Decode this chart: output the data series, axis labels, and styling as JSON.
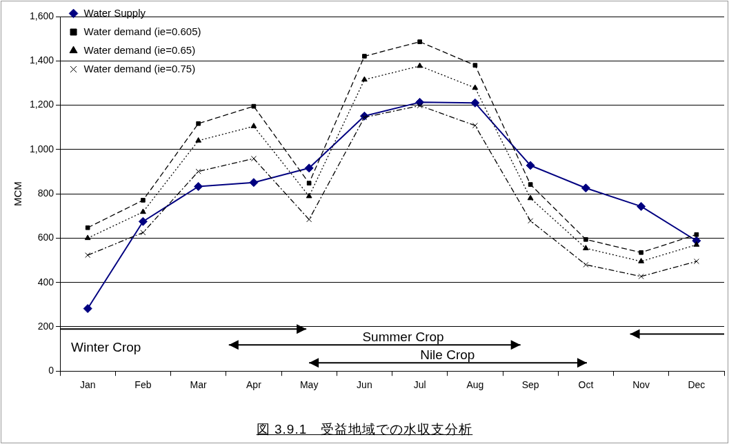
{
  "chart_data": {
    "type": "line",
    "title": "図 3.9.1　受益地域での水収支分析",
    "ylabel": "MCM",
    "categories": [
      "Jan",
      "Feb",
      "Mar",
      "Apr",
      "May",
      "Jun",
      "Jul",
      "Aug",
      "Sep",
      "Oct",
      "Nov",
      "Dec"
    ],
    "series": [
      {
        "name": "Water Supply",
        "color": "#000080",
        "marker": "diamond",
        "line_style": "solid",
        "values": [
          282,
          675,
          833,
          851,
          916,
          1151,
          1213,
          1210,
          928,
          826,
          743,
          588
        ]
      },
      {
        "name": "Water demand (ie=0.605)",
        "color": "#000000",
        "marker": "square",
        "line_style": "dashed",
        "values": [
          647,
          771,
          1117,
          1195,
          848,
          1421,
          1486,
          1380,
          842,
          594,
          535,
          616
        ]
      },
      {
        "name": "Water demand (ie=0.65)",
        "color": "#000000",
        "marker": "triangle",
        "line_style": "dotted",
        "values": [
          600,
          718,
          1040,
          1105,
          789,
          1315,
          1377,
          1278,
          780,
          554,
          495,
          570
        ]
      },
      {
        "name": "Water demand (ie=0.75)",
        "color": "#000000",
        "marker": "cross",
        "line_style": "dashdot",
        "values": [
          523,
          625,
          901,
          959,
          684,
          1145,
          1198,
          1108,
          678,
          480,
          427,
          495
        ]
      }
    ],
    "ylim": [
      0,
      1600
    ],
    "yticks": [
      0,
      200,
      400,
      600,
      800,
      {
        "value": 1000,
        "label": "1,000"
      },
      {
        "value": 1200,
        "label": "1,200"
      },
      {
        "value": 1400,
        "label": "1,400"
      },
      {
        "value": 1600,
        "label": "1,600"
      }
    ],
    "grid": "y",
    "legend": "top left",
    "annotations": [
      "Winter Crop",
      "Summer Crop",
      "Nile Crop"
    ]
  }
}
